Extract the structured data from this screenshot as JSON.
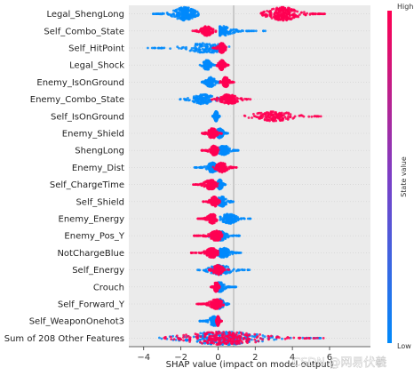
{
  "chart_data": {
    "type": "scatter",
    "subtype": "shap-beeswarm",
    "xlabel": "SHAP value (impact on model output)",
    "xlim": [
      -4.8,
      8.2
    ],
    "xticks": [
      -4,
      -2,
      0,
      2,
      4,
      6
    ],
    "grid": false,
    "colorbar": {
      "label": "State value",
      "high_label": "High",
      "low_label": "Low",
      "low_color": "#008afb",
      "high_color": "#ff0052"
    },
    "features": [
      {
        "name": "Legal_ShengLong",
        "blue_range": [
          -3.5,
          -1.0
        ],
        "blue_center": -1.8,
        "red_range": [
          2.3,
          5.8
        ],
        "red_center": 3.5
      },
      {
        "name": "Self_Combo_State",
        "blue_range": [
          0.1,
          2.6
        ],
        "blue_center": 0.2,
        "red_range": [
          -1.4,
          -0.1
        ],
        "red_center": -0.6
      },
      {
        "name": "Self_HitPoint",
        "blue_range": [
          -4.2,
          0.6
        ],
        "blue_center": -0.6,
        "red_range": [
          -0.3,
          0.5
        ],
        "red_center": 0.2
      },
      {
        "name": "Legal_Shock",
        "blue_range": [
          -1.0,
          -0.1
        ],
        "blue_center": -0.6,
        "red_range": [
          -0.1,
          0.6
        ],
        "red_center": 0.2
      },
      {
        "name": "Enemy_IsOnGround",
        "blue_range": [
          -0.9,
          0.2
        ],
        "blue_center": -0.4,
        "red_range": [
          0.1,
          0.9
        ],
        "red_center": 0.4
      },
      {
        "name": "Enemy_Combo_State",
        "blue_range": [
          -2.1,
          0.4
        ],
        "blue_center": -0.8,
        "red_range": [
          -0.4,
          1.8
        ],
        "red_center": 0.6
      },
      {
        "name": "Self_IsOnGround",
        "blue_range": [
          -0.3,
          0.1
        ],
        "blue_center": -0.1,
        "red_range": [
          1.1,
          5.8
        ],
        "red_center": 3.0
      },
      {
        "name": "Enemy_Shield",
        "blue_range": [
          -0.2,
          0.6
        ],
        "blue_center": 0.1,
        "red_range": [
          -0.9,
          0.2
        ],
        "red_center": -0.3
      },
      {
        "name": "ShengLong",
        "blue_range": [
          -0.2,
          1.1
        ],
        "blue_center": 0.3,
        "red_range": [
          -0.9,
          0.1
        ],
        "red_center": -0.2
      },
      {
        "name": "Enemy_Dist",
        "blue_range": [
          -1.3,
          0.1
        ],
        "blue_center": -0.3,
        "red_range": [
          -0.3,
          1.0
        ],
        "red_center": 0.2
      },
      {
        "name": "Self_ChargeTime",
        "blue_range": [
          -0.2,
          0.4
        ],
        "blue_center": 0.1,
        "red_range": [
          -1.4,
          0.0
        ],
        "red_center": -0.4
      },
      {
        "name": "Self_Shield",
        "blue_range": [
          -0.3,
          0.9
        ],
        "blue_center": 0.2,
        "red_range": [
          -0.8,
          0.1
        ],
        "red_center": -0.2
      },
      {
        "name": "Enemy_Energy",
        "blue_range": [
          0.0,
          1.8
        ],
        "blue_center": 0.6,
        "red_range": [
          -1.1,
          0.0
        ],
        "red_center": -0.3
      },
      {
        "name": "Enemy_Pos_Y",
        "blue_range": [
          -0.5,
          1.2
        ],
        "blue_center": 0.1,
        "red_range": [
          -1.3,
          0.3
        ],
        "red_center": -0.1
      },
      {
        "name": "NotChargeBlue",
        "blue_range": [
          -0.2,
          1.3
        ],
        "blue_center": 0.3,
        "red_range": [
          -1.5,
          0.0
        ],
        "red_center": -0.3
      },
      {
        "name": "Self_Energy",
        "blue_range": [
          -1.1,
          1.7
        ],
        "blue_center": 0.1,
        "red_range": [
          -0.6,
          0.6
        ],
        "red_center": 0.0
      },
      {
        "name": "Crouch",
        "blue_range": [
          -0.1,
          1.0
        ],
        "blue_center": 0.1,
        "red_range": [
          -0.4,
          0.1
        ],
        "red_center": -0.1
      },
      {
        "name": "Self_Forward_Y",
        "blue_range": [
          -0.4,
          0.6
        ],
        "blue_center": 0.1,
        "red_range": [
          -1.2,
          0.3
        ],
        "red_center": -0.1
      },
      {
        "name": "Self_WeaponOnehot3",
        "blue_range": [
          -1.0,
          0.1
        ],
        "blue_center": -0.2,
        "red_range": [
          -0.1,
          0.2
        ],
        "red_center": 0.0
      },
      {
        "name": "Sum of 208 Other Features",
        "blue_range": [
          -3.2,
          5.6
        ],
        "blue_center": 0.3,
        "red_range": [
          -3.0,
          5.8
        ],
        "red_center": 0.3
      }
    ]
  },
  "watermark": "CSDN @网易伏羲"
}
